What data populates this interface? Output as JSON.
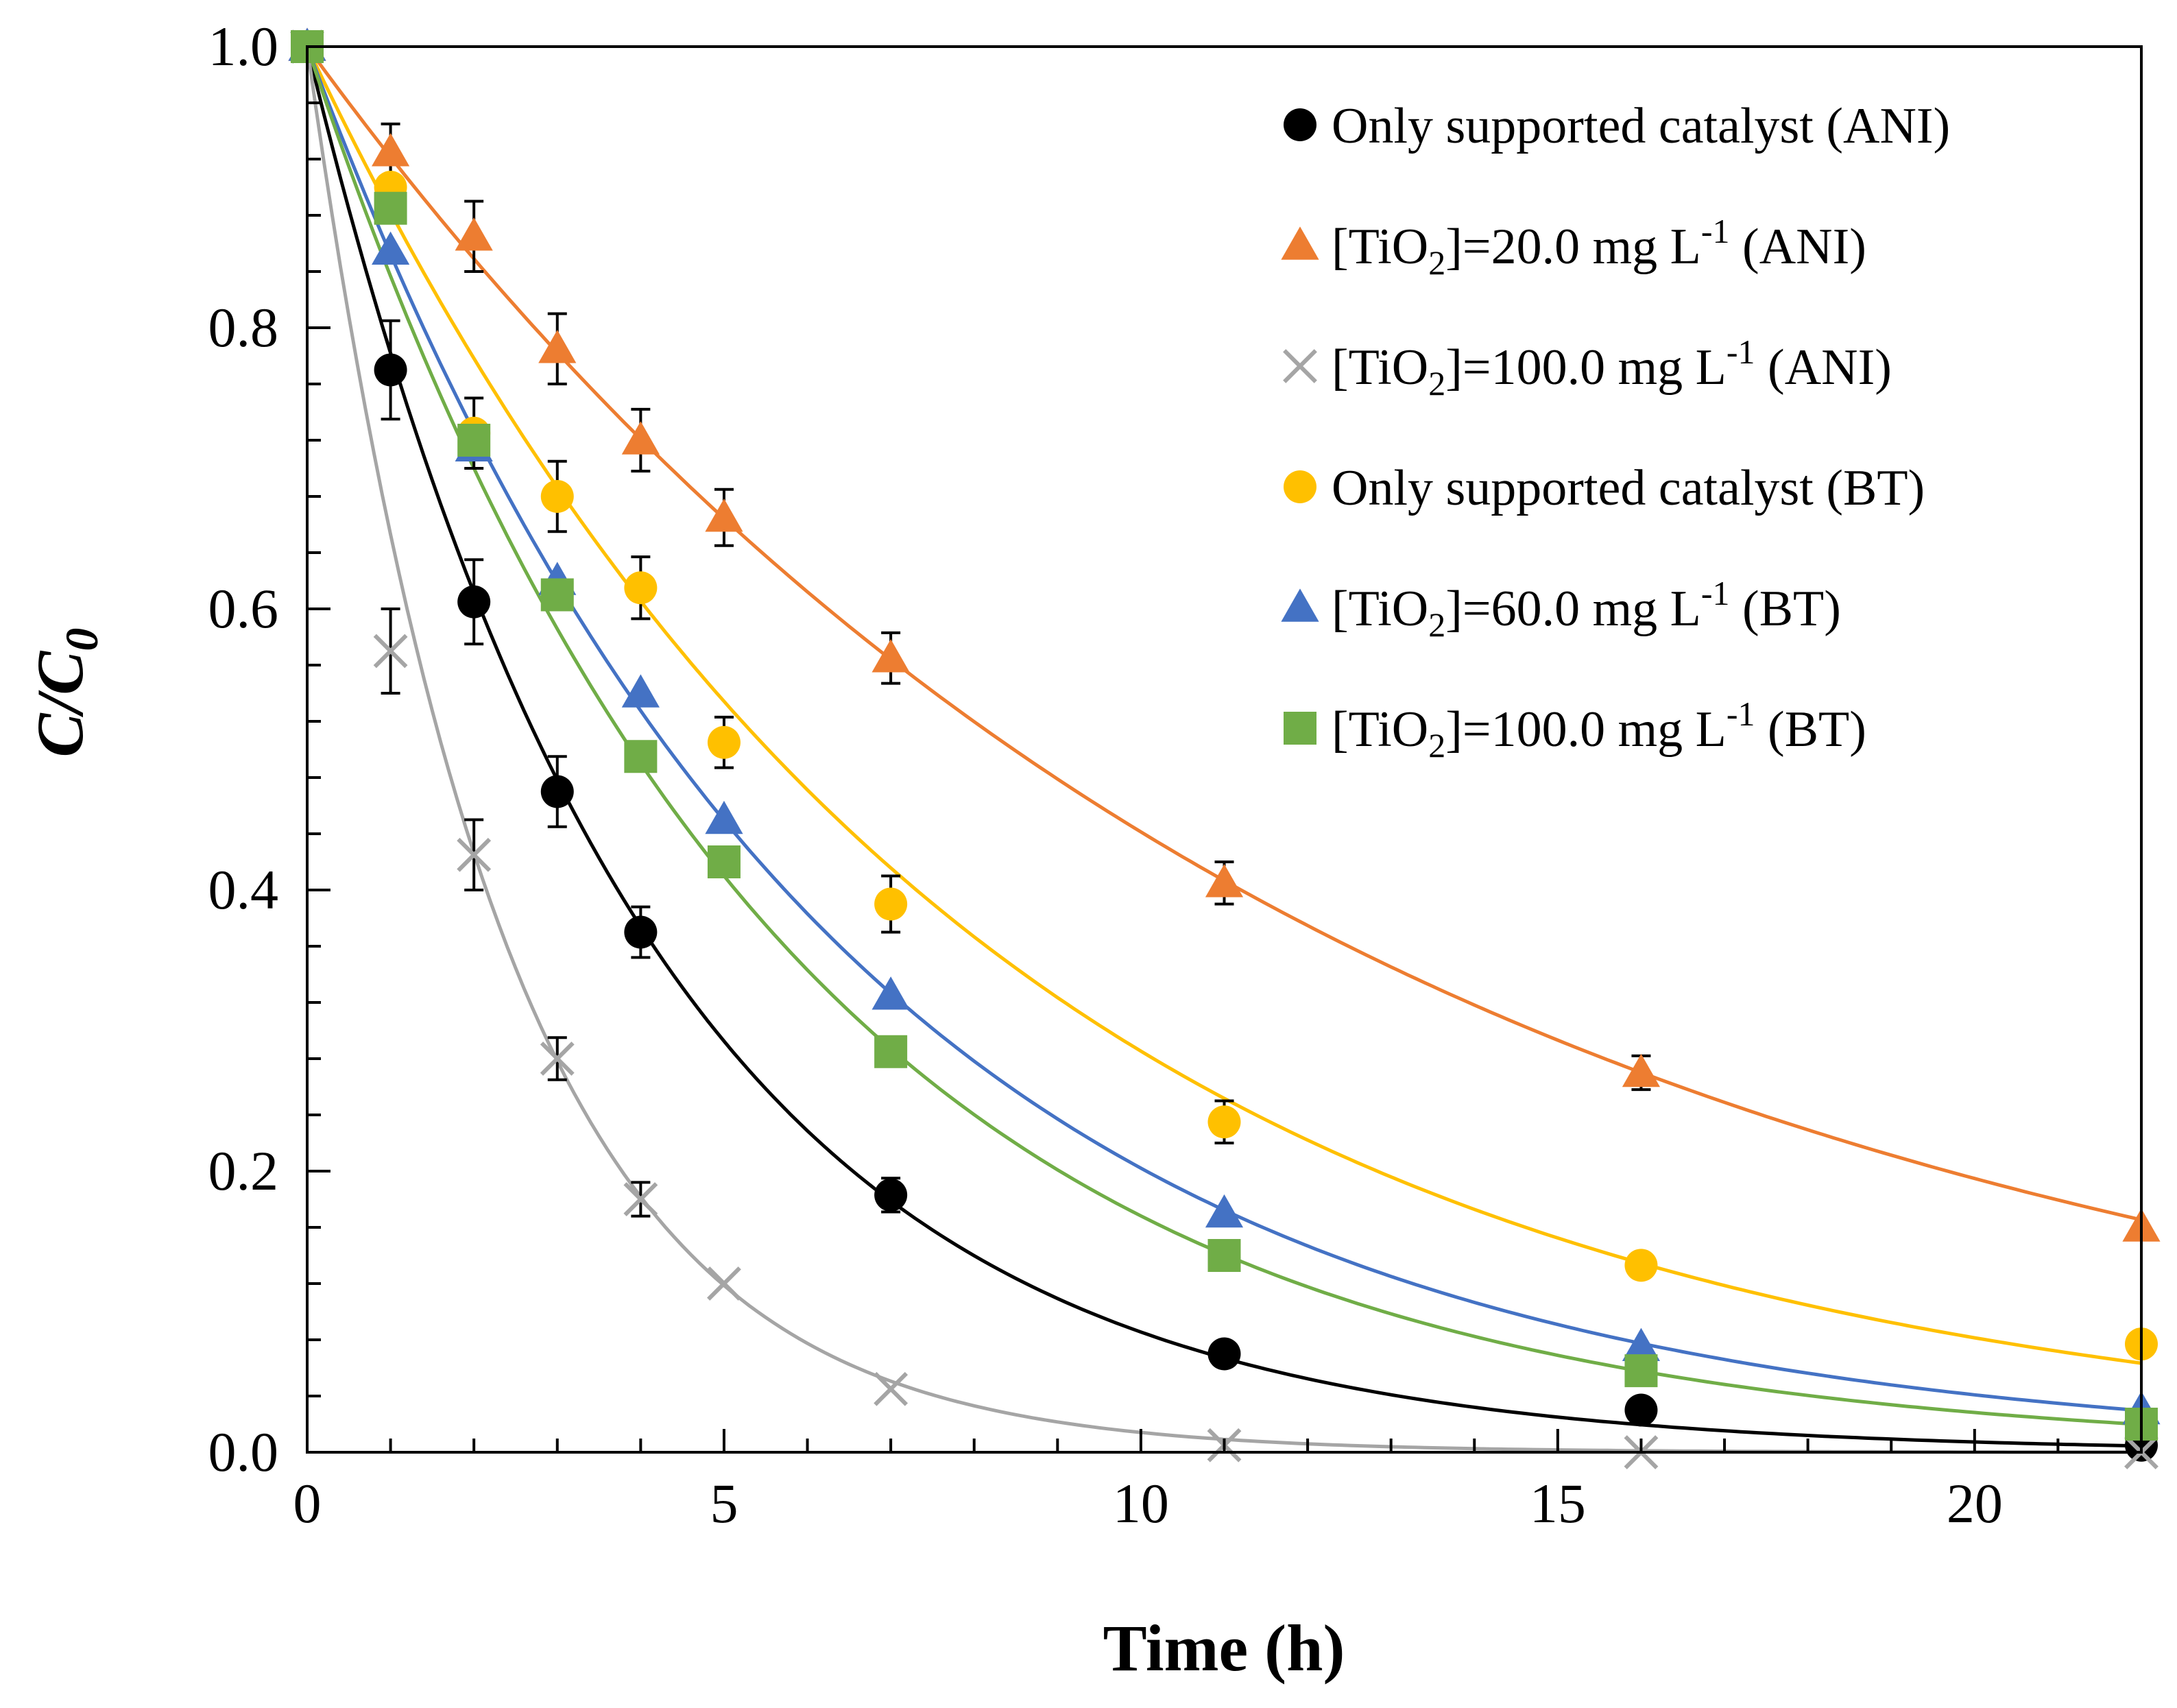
{
  "chart_data": {
    "type": "scatter",
    "xlabel": "Time (h)",
    "ylabel": {
      "main": "C/C",
      "sub": "0"
    },
    "xlim": [
      0,
      22
    ],
    "ylim": [
      0,
      1
    ],
    "x_ticks": [
      0,
      5,
      10,
      15,
      20
    ],
    "x_tick_labels": [
      "0",
      "5",
      "10",
      "15",
      "20"
    ],
    "y_ticks": [
      0,
      0.2,
      0.4,
      0.6,
      0.8,
      1.0
    ],
    "y_tick_labels": [
      "0.0",
      "0.2",
      "0.4",
      "0.6",
      "0.8",
      "1.0"
    ],
    "grid": false,
    "legend_position": "top-right",
    "series": [
      {
        "name": "Only supported catalyst (ANI)",
        "legend_parts": {
          "pre": "Only supported catalyst (ANI)"
        },
        "color": "#000000",
        "marker": "circle",
        "k": 0.2459,
        "x": [
          0,
          1,
          2,
          3,
          4,
          7,
          11,
          16,
          22
        ],
        "y": [
          1.0,
          0.77,
          0.605,
          0.47,
          0.37,
          0.183,
          0.07,
          0.03,
          0.005
        ],
        "err": [
          0,
          0.035,
          0.03,
          0.025,
          0.018,
          0.012,
          0,
          0,
          0
        ]
      },
      {
        "name": "[TiO2]=20.0 mg L-1 (ANI)",
        "legend_parts": {
          "pre": "[TiO",
          "sub": "2",
          "mid": "]=20.0 mg L",
          "sup": "-1",
          "post": " (ANI)"
        },
        "color": "#ED7D31",
        "marker": "triangle",
        "k": 0.0818,
        "x": [
          0,
          1,
          2,
          3,
          4,
          5,
          7,
          11,
          16,
          22
        ],
        "y": [
          1.0,
          0.925,
          0.865,
          0.785,
          0.72,
          0.665,
          0.565,
          0.405,
          0.27,
          0.16
        ],
        "err": [
          0,
          0.02,
          0.025,
          0.025,
          0.022,
          0.02,
          0.018,
          0.015,
          0.012,
          0
        ]
      },
      {
        "name": "[TiO2]=100.0 mg L-1 (ANI)",
        "legend_parts": {
          "pre": "[TiO",
          "sub": "2",
          "mid": "]=100.0 mg L",
          "sup": "-1",
          "post": " (ANI)"
        },
        "color": "#A5A5A5",
        "marker": "cross",
        "k": 0.4263,
        "x": [
          0,
          1,
          2,
          3,
          4,
          5,
          7,
          11,
          16,
          22
        ],
        "y": [
          1.0,
          0.57,
          0.425,
          0.28,
          0.18,
          0.12,
          0.045,
          0.005,
          0.0,
          0.0
        ],
        "err": [
          0,
          0.03,
          0.025,
          0.015,
          0.012,
          0,
          0,
          0,
          0,
          0
        ]
      },
      {
        "name": "Only supported catalyst (BT)",
        "legend_parts": {
          "pre": "Only supported catalyst (BT)"
        },
        "color": "#FFC000",
        "marker": "circle",
        "k": 0.1254,
        "x": [
          0,
          1,
          2,
          3,
          4,
          5,
          7,
          11,
          16,
          22
        ],
        "y": [
          1.0,
          0.9,
          0.725,
          0.68,
          0.615,
          0.505,
          0.39,
          0.235,
          0.133,
          0.077
        ],
        "err": [
          0,
          0.018,
          0.025,
          0.025,
          0.022,
          0.018,
          0.02,
          0.015,
          0,
          0
        ]
      },
      {
        "name": "[TiO2]=60.0 mg L-1 (BT)",
        "legend_parts": {
          "pre": "[TiO",
          "sub": "2",
          "mid": "]=60.0 mg L",
          "sup": "-1",
          "post": " (BT)"
        },
        "color": "#4472C4",
        "marker": "triangle",
        "k": 0.1599,
        "x": [
          0,
          1,
          2,
          3,
          4,
          5,
          7,
          11,
          16,
          22
        ],
        "y": [
          1.0,
          0.855,
          0.715,
          0.62,
          0.54,
          0.45,
          0.325,
          0.17,
          0.075,
          0.03
        ],
        "err": [
          0,
          0,
          0,
          0,
          0,
          0,
          0,
          0,
          0,
          0
        ]
      },
      {
        "name": "[TiO2]=100.0 mg L-1 (BT)",
        "legend_parts": {
          "pre": "[TiO",
          "sub": "2",
          "mid": "]=100.0 mg L",
          "sup": "-1",
          "post": " (BT)"
        },
        "color": "#70AD47",
        "marker": "square",
        "k": 0.1783,
        "x": [
          0,
          1,
          2,
          3,
          4,
          5,
          7,
          11,
          16,
          22
        ],
        "y": [
          1.0,
          0.885,
          0.72,
          0.61,
          0.495,
          0.42,
          0.285,
          0.14,
          0.058,
          0.02
        ],
        "err": [
          0,
          0,
          0,
          0,
          0,
          0,
          0,
          0,
          0,
          0
        ]
      }
    ]
  }
}
